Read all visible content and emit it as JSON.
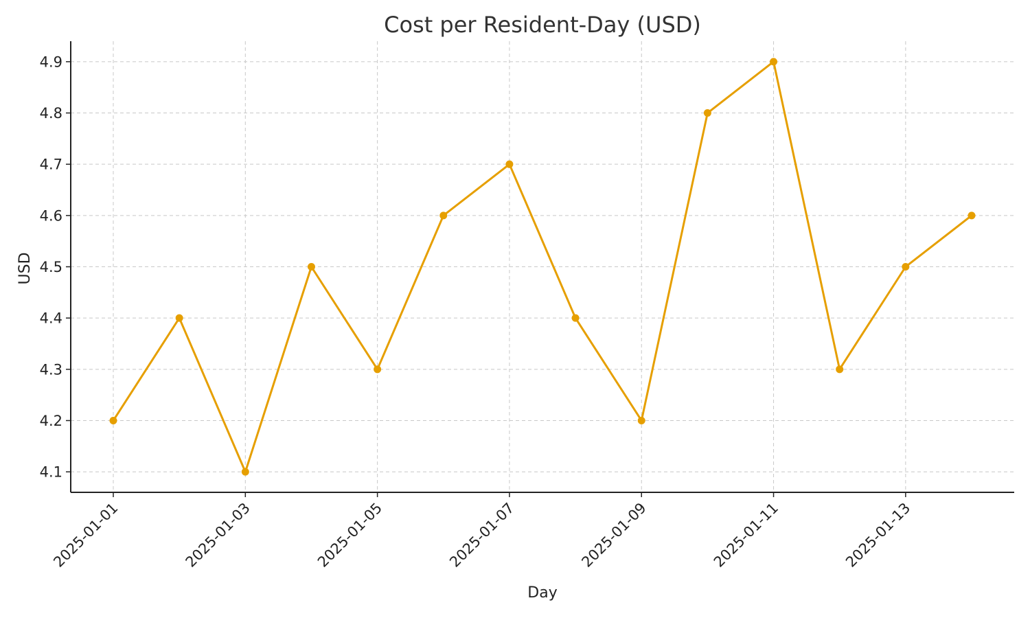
{
  "chart_data": {
    "type": "line",
    "title": "Cost per Resident-Day (USD)",
    "xlabel": "Day",
    "ylabel": "USD",
    "x": [
      "2025-01-01",
      "2025-01-02",
      "2025-01-03",
      "2025-01-04",
      "2025-01-05",
      "2025-01-06",
      "2025-01-07",
      "2025-01-08",
      "2025-01-09",
      "2025-01-10",
      "2025-01-11",
      "2025-01-12",
      "2025-01-13",
      "2025-01-14"
    ],
    "x_tick_labels": [
      "2025-01-01",
      "2025-01-03",
      "2025-01-05",
      "2025-01-07",
      "2025-01-09",
      "2025-01-11",
      "2025-01-13"
    ],
    "series": [
      {
        "values": [
          4.2,
          4.4,
          4.1,
          4.5,
          4.3,
          4.6,
          4.7,
          4.4,
          4.2,
          4.8,
          4.9,
          4.3,
          4.5,
          4.6
        ]
      }
    ],
    "y_ticks": [
      4.1,
      4.2,
      4.3,
      4.4,
      4.5,
      4.6,
      4.7,
      4.8,
      4.9
    ],
    "ylim": [
      4.06,
      4.94
    ],
    "grid": true,
    "colors": {
      "series": "#E69F00"
    }
  }
}
